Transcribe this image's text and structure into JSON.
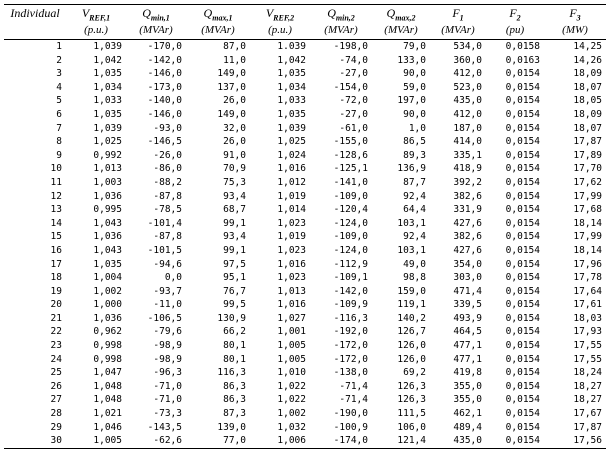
{
  "table": {
    "columns": [
      {
        "symbol": "Individual"
      },
      {
        "symbol": "V",
        "sub": "REF,1",
        "unit": "(p.u.)"
      },
      {
        "symbol": "Q",
        "sub": "min,1",
        "unit": "(MVAr)"
      },
      {
        "symbol": "Q",
        "sub": "max,1",
        "unit": "(MVAr)"
      },
      {
        "symbol": "V",
        "sub": "REF,2",
        "unit": "(p.u.)"
      },
      {
        "symbol": "Q",
        "sub": "min,2",
        "unit": "(MVAr)"
      },
      {
        "symbol": "Q",
        "sub": "max,2",
        "unit": "(MVAr)"
      },
      {
        "symbol": "F",
        "sub": "1",
        "unit": "(MVAr)"
      },
      {
        "symbol": "F",
        "sub": "2",
        "unit": "(pu)"
      },
      {
        "symbol": "F",
        "sub": "3",
        "unit": "(MW)"
      }
    ],
    "rows": [
      [
        "1",
        "1,039",
        "-170,0",
        "87,0",
        "1.039",
        "-198,0",
        "79,0",
        "534,0",
        "0,0158",
        "14,25"
      ],
      [
        "2",
        "1,042",
        "-142,0",
        "11,0",
        "1,042",
        "-74,0",
        "133,0",
        "360,0",
        "0,0163",
        "14,26"
      ],
      [
        "3",
        "1,035",
        "-146,0",
        "149,0",
        "1,035",
        "-27,0",
        "90,0",
        "412,0",
        "0,0154",
        "18,09"
      ],
      [
        "4",
        "1,034",
        "-173,0",
        "137,0",
        "1,034",
        "-154,0",
        "59,0",
        "523,0",
        "0,0154",
        "18,07"
      ],
      [
        "5",
        "1,033",
        "-140,0",
        "26,0",
        "1,033",
        "-72,0",
        "197,0",
        "435,0",
        "0,0154",
        "18,05"
      ],
      [
        "6",
        "1,035",
        "-146,0",
        "149,0",
        "1,035",
        "-27,0",
        "90,0",
        "412,0",
        "0,0154",
        "18,09"
      ],
      [
        "7",
        "1,039",
        "-93,0",
        "32,0",
        "1,039",
        "-61,0",
        "1,0",
        "187,0",
        "0,0154",
        "18,07"
      ],
      [
        "8",
        "1,025",
        "-146,5",
        "26,0",
        "1,025",
        "-155,0",
        "86,5",
        "414,0",
        "0,0154",
        "17,87"
      ],
      [
        "9",
        "0,992",
        "-26,0",
        "91,0",
        "1,024",
        "-128,6",
        "89,3",
        "335,1",
        "0,0154",
        "17,89"
      ],
      [
        "10",
        "1,013",
        "-86,0",
        "70,9",
        "1,016",
        "-125,1",
        "136,9",
        "418,9",
        "0,0154",
        "17,70"
      ],
      [
        "11",
        "1,003",
        "-88,2",
        "75,3",
        "1,012",
        "-141,0",
        "87,7",
        "392,2",
        "0,0154",
        "17,62"
      ],
      [
        "12",
        "1,036",
        "-87,8",
        "93,4",
        "1,019",
        "-109,0",
        "92,4",
        "382,6",
        "0,0154",
        "17,99"
      ],
      [
        "13",
        "0,995",
        "-78,5",
        "68,7",
        "1,014",
        "-120,4",
        "64,4",
        "331,9",
        "0,0154",
        "17,68"
      ],
      [
        "14",
        "1,043",
        "-101,4",
        "99,1",
        "1,023",
        "-124,0",
        "103,1",
        "427,6",
        "0,0154",
        "18,14"
      ],
      [
        "15",
        "1,036",
        "-87,8",
        "93,4",
        "1,019",
        "-109,0",
        "92,4",
        "382,6",
        "0,0154",
        "17,99"
      ],
      [
        "16",
        "1,043",
        "-101,5",
        "99,1",
        "1,023",
        "-124,0",
        "103,1",
        "427,6",
        "0,0154",
        "18,14"
      ],
      [
        "17",
        "1,035",
        "-94,6",
        "97,5",
        "1,016",
        "-112,9",
        "49,0",
        "354,0",
        "0,0154",
        "17,96"
      ],
      [
        "18",
        "1,004",
        "0,0",
        "95,1",
        "1,023",
        "-109,1",
        "98,8",
        "303,0",
        "0,0154",
        "17,78"
      ],
      [
        "19",
        "1,002",
        "-93,7",
        "76,7",
        "1,013",
        "-142,0",
        "159,0",
        "471,4",
        "0,0154",
        "17,64"
      ],
      [
        "20",
        "1,000",
        "-11,0",
        "99,5",
        "1,016",
        "-109,9",
        "119,1",
        "339,5",
        "0,0154",
        "17,61"
      ],
      [
        "21",
        "1,036",
        "-106,5",
        "130,9",
        "1,027",
        "-116,3",
        "140,2",
        "493,9",
        "0,0154",
        "18,03"
      ],
      [
        "22",
        "0,962",
        "-79,6",
        "66,2",
        "1,001",
        "-192,0",
        "126,7",
        "464,5",
        "0,0154",
        "17,93"
      ],
      [
        "23",
        "0,998",
        "-98,9",
        "80,1",
        "1,005",
        "-172,0",
        "126,0",
        "477,1",
        "0,0154",
        "17,55"
      ],
      [
        "24",
        "0,998",
        "-98,9",
        "80,1",
        "1,005",
        "-172,0",
        "126,0",
        "477,1",
        "0,0154",
        "17,55"
      ],
      [
        "25",
        "1,047",
        "-96,3",
        "116,3",
        "1,010",
        "-138,0",
        "69,2",
        "419,8",
        "0,0154",
        "18,24"
      ],
      [
        "26",
        "1,048",
        "-71,0",
        "86,3",
        "1,022",
        "-71,4",
        "126,3",
        "355,0",
        "0,0154",
        "18,27"
      ],
      [
        "27",
        "1,048",
        "-71,0",
        "86,3",
        "1,022",
        "-71,4",
        "126,3",
        "355,0",
        "0,0154",
        "18,27"
      ],
      [
        "28",
        "1,021",
        "-73,3",
        "87,3",
        "1,002",
        "-190,0",
        "111,5",
        "462,1",
        "0,0154",
        "17,67"
      ],
      [
        "29",
        "1,046",
        "-143,5",
        "139,0",
        "1,032",
        "-100,9",
        "106,0",
        "489,4",
        "0,0154",
        "17,87"
      ],
      [
        "30",
        "1,005",
        "-62,6",
        "77,0",
        "1,006",
        "-174,0",
        "121,4",
        "435,0",
        "0,0154",
        "17,56"
      ]
    ]
  }
}
